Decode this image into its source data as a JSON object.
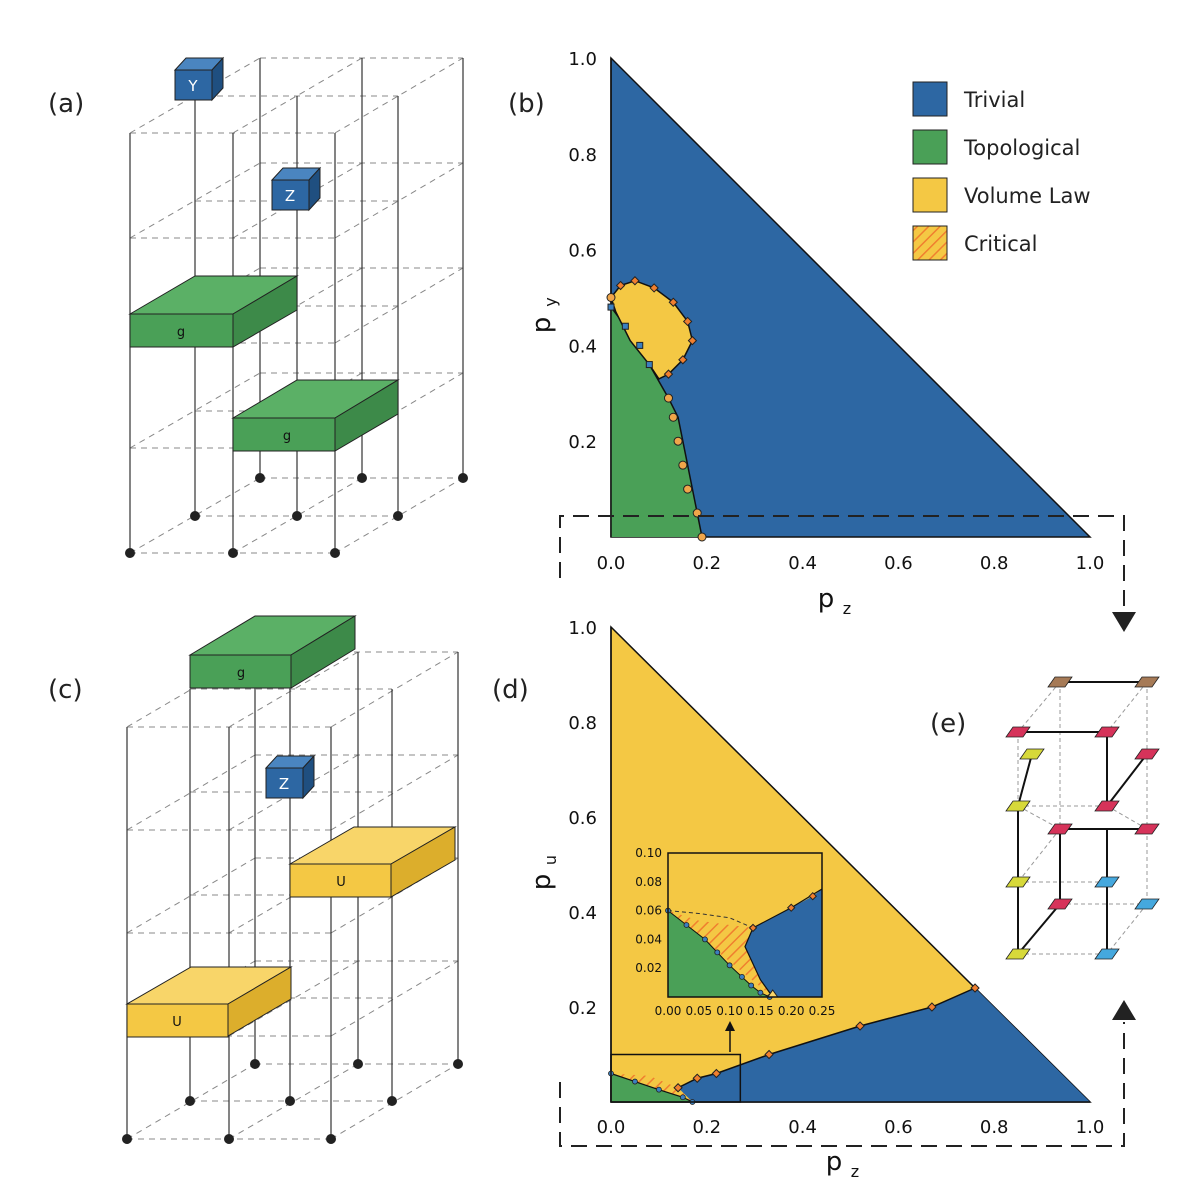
{
  "panels": {
    "a": {
      "label": "(a)",
      "gates": [
        "Y",
        "Z"
      ],
      "blocks": [
        "g",
        "g"
      ]
    },
    "b": {
      "label": "(b)"
    },
    "c": {
      "label": "(c)",
      "gates": [
        "Z"
      ],
      "blocks": [
        "g",
        "U",
        "U"
      ]
    },
    "d": {
      "label": "(d)"
    },
    "e": {
      "label": "(e)"
    }
  },
  "colors": {
    "trivial": "#2d67a3",
    "topological": "#4aa057",
    "volume": "#f4c844",
    "critical": "#f07f2f",
    "point_fill": "#f0a64a",
    "lattice_red": "#d6335a",
    "lattice_yellow": "#d7d93a",
    "lattice_blue": "#45a8de",
    "lattice_brown": "#a67a56"
  },
  "legend": {
    "trivial": "Trivial",
    "topological": "Topological",
    "volume": "Volume Law",
    "critical": "Critical"
  },
  "chart_data": [
    {
      "id": "b",
      "type": "phase-diagram",
      "xlabel": "p",
      "xlabel_sub": "z",
      "ylabel": "p",
      "ylabel_sub": "y",
      "xlim": [
        0,
        1
      ],
      "ylim": [
        0,
        1
      ],
      "xticks": [
        "0.0",
        "0.2",
        "0.4",
        "0.6",
        "0.8",
        "1.0"
      ],
      "yticks": [
        "0.2",
        "0.4",
        "0.6",
        "0.8",
        "1.0"
      ],
      "topological_boundary": [
        [
          0,
          0.48
        ],
        [
          0.03,
          0.44
        ],
        [
          0.08,
          0.36
        ],
        [
          0.12,
          0.29
        ],
        [
          0.14,
          0.25
        ],
        [
          0.15,
          0.2
        ],
        [
          0.16,
          0.15
        ],
        [
          0.17,
          0.1
        ],
        [
          0.18,
          0.05
        ],
        [
          0.19,
          0
        ]
      ],
      "volume_law_region": [
        [
          0,
          0.5
        ],
        [
          0.02,
          0.525
        ],
        [
          0.05,
          0.535
        ],
        [
          0.09,
          0.52
        ],
        [
          0.13,
          0.49
        ],
        [
          0.16,
          0.45
        ],
        [
          0.17,
          0.41
        ],
        [
          0.15,
          0.37
        ],
        [
          0.12,
          0.34
        ],
        [
          0.1,
          0.33
        ],
        [
          0.08,
          0.36
        ],
        [
          0.04,
          0.41
        ],
        [
          0.01,
          0.47
        ]
      ],
      "critical_points": [
        [
          0.02,
          0.525
        ],
        [
          0.05,
          0.535
        ],
        [
          0.09,
          0.52
        ],
        [
          0.13,
          0.49
        ],
        [
          0.16,
          0.45
        ],
        [
          0.17,
          0.41
        ],
        [
          0.15,
          0.37
        ],
        [
          0.12,
          0.34
        ]
      ],
      "point_series_square": [
        [
          0,
          0.48
        ],
        [
          0.03,
          0.44
        ],
        [
          0.06,
          0.4
        ],
        [
          0.08,
          0.36
        ]
      ],
      "point_series_circle": [
        [
          0,
          0.5
        ],
        [
          0.12,
          0.29
        ],
        [
          0.13,
          0.25
        ],
        [
          0.14,
          0.2
        ],
        [
          0.15,
          0.15
        ],
        [
          0.16,
          0.1
        ],
        [
          0.18,
          0.05
        ],
        [
          0.19,
          0
        ]
      ]
    },
    {
      "id": "d",
      "type": "phase-diagram",
      "xlabel": "p",
      "xlabel_sub": "z",
      "ylabel": "p",
      "ylabel_sub": "u",
      "xlim": [
        0,
        1
      ],
      "ylim": [
        0,
        1
      ],
      "xticks": [
        "0.0",
        "0.2",
        "0.4",
        "0.6",
        "0.8",
        "1.0"
      ],
      "yticks": [
        "0.2",
        "0.4",
        "0.6",
        "0.8",
        "1.0"
      ],
      "trivial_boundary": [
        [
          0.14,
          0.03
        ],
        [
          0.18,
          0.05
        ],
        [
          0.22,
          0.06
        ],
        [
          0.33,
          0.1
        ],
        [
          0.52,
          0.16
        ],
        [
          0.67,
          0.2
        ],
        [
          0.76,
          0.24
        ]
      ],
      "topological_boundary": [
        [
          0,
          0.06
        ],
        [
          0.05,
          0.043
        ],
        [
          0.1,
          0.026
        ],
        [
          0.15,
          0.01
        ],
        [
          0.17,
          0
        ]
      ],
      "inset": {
        "xlim": [
          0,
          0.25
        ],
        "ylim": [
          0,
          0.1
        ],
        "xticks": [
          "0.00",
          "0.05",
          "0.10",
          "0.15",
          "0.20",
          "0.25"
        ],
        "yticks": [
          "0.02",
          "0.04",
          "0.06",
          "0.08",
          "0.10"
        ],
        "critical_region": [
          [
            0,
            0.06
          ],
          [
            0.05,
            0.053
          ],
          [
            0.1,
            0.05
          ],
          [
            0.138,
            0.048
          ],
          [
            0.125,
            0.035
          ],
          [
            0.15,
            0.012
          ],
          [
            0.17,
            0
          ]
        ],
        "topological_points": [
          [
            0,
            0.06
          ],
          [
            0.03,
            0.05
          ],
          [
            0.06,
            0.04
          ],
          [
            0.08,
            0.031
          ],
          [
            0.1,
            0.022
          ],
          [
            0.12,
            0.014
          ],
          [
            0.135,
            0.008
          ],
          [
            0.15,
            0.003
          ],
          [
            0.165,
            0
          ]
        ],
        "trivial_points": [
          [
            0.138,
            0.048
          ],
          [
            0.2,
            0.062
          ],
          [
            0.235,
            0.07
          ]
        ]
      }
    }
  ]
}
